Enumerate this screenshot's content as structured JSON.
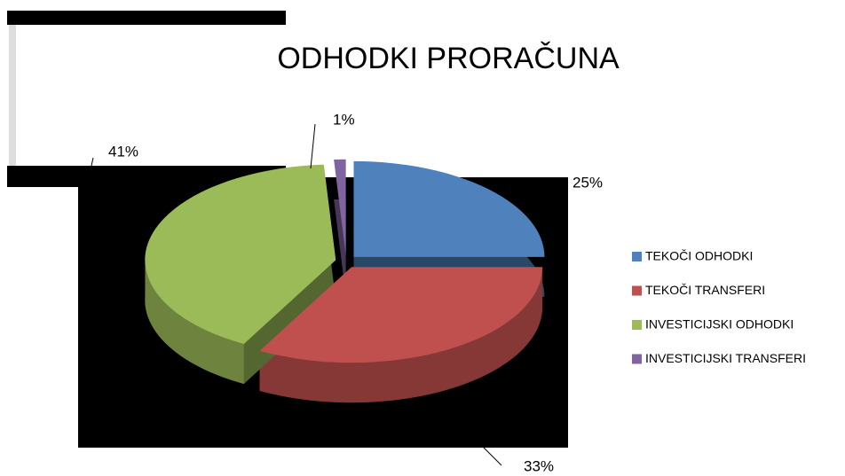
{
  "chart_data": {
    "type": "pie",
    "title": "ODHODKI PRORAČUNA",
    "categories": [
      "TEKOČI ODHODKI",
      "TEKOČI TRANSFERI",
      "INVESTICIJSKI ODHODKI",
      "INVESTICIJSKI TRANSFERI"
    ],
    "values": [
      25,
      33,
      41,
      1
    ],
    "value_labels": [
      "25%",
      "33%",
      "41%",
      "1%"
    ],
    "colors": [
      "#4f81bd",
      "#c0504d",
      "#9bbb59",
      "#8064a2"
    ],
    "legend": "right"
  }
}
